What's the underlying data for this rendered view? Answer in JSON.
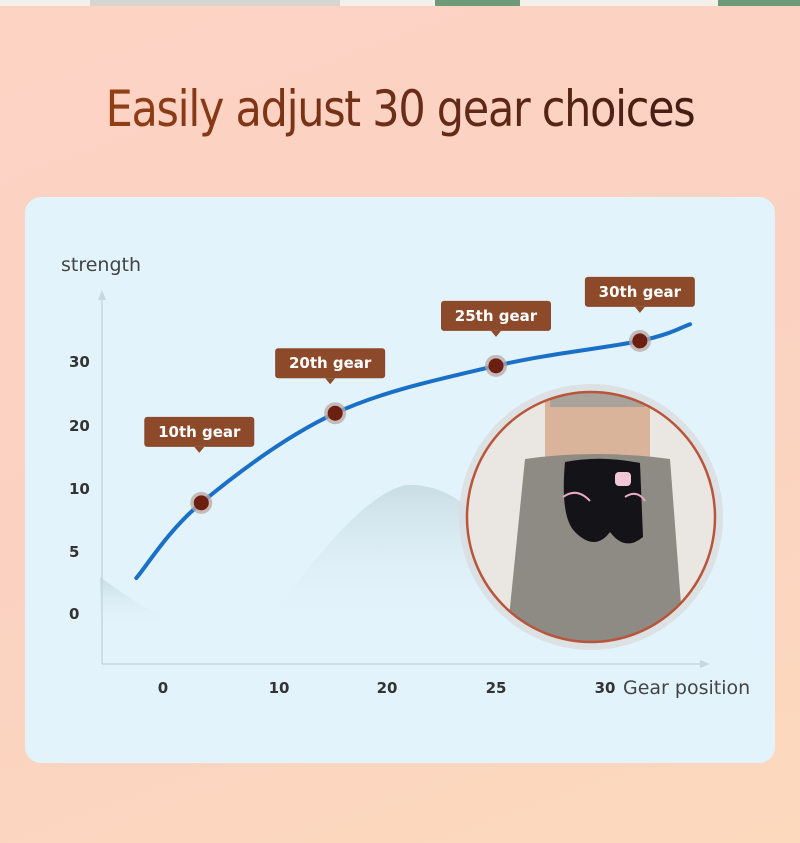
{
  "title": "Easily adjust 30 gear choices",
  "chart_data": {
    "type": "line",
    "ylabel": "strength",
    "xlabel": "Gear position",
    "x_ticks": [
      "0",
      "10",
      "20",
      "25",
      "30"
    ],
    "y_ticks": [
      "0",
      "5",
      "10",
      "20",
      "30"
    ],
    "grid": false,
    "series": [
      {
        "color": "#1a6fc7",
        "x": [
          -2.3,
          3.3,
          15.2,
          25,
          31.6,
          33.9
        ],
        "y": [
          2.9,
          8.9,
          22,
          29.4,
          33.3,
          35.9
        ]
      }
    ],
    "annotations": [
      {
        "label": "10th gear",
        "x": 3.3,
        "y": 8.9
      },
      {
        "label": "20th gear",
        "x": 15.2,
        "y": 22
      },
      {
        "label": "25th gear",
        "x": 25,
        "y": 29.4
      },
      {
        "label": "30th gear",
        "x": 31.6,
        "y": 33.3
      }
    ],
    "marker_color": "#6b1f10",
    "tag_color": "#8c4a2a"
  },
  "product_image": "woman wearing heated hip massager belt with wing pattern"
}
